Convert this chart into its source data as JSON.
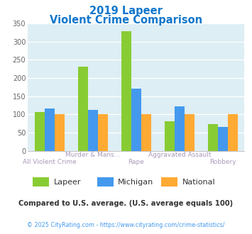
{
  "title_line1": "2019 Lapeer",
  "title_line2": "Violent Crime Comparison",
  "categories": [
    "All Violent Crime",
    "Murder & Mans...",
    "Rape",
    "Aggravated Assault",
    "Robbery"
  ],
  "cat_labels_top": [
    "",
    "Murder & Mans...",
    "",
    "Aggravated Assault",
    ""
  ],
  "cat_labels_bot": [
    "All Violent Crime",
    "",
    "Rape",
    "",
    "Robbery"
  ],
  "series": {
    "Lapeer": [
      107,
      232,
      328,
      81,
      74
    ],
    "Michigan": [
      117,
      112,
      170,
      122,
      65
    ],
    "National": [
      100,
      100,
      100,
      100,
      100
    ]
  },
  "colors": {
    "Lapeer": "#88cc33",
    "Michigan": "#4499ee",
    "National": "#ffaa33"
  },
  "ylim": [
    0,
    350
  ],
  "yticks": [
    0,
    50,
    100,
    150,
    200,
    250,
    300,
    350
  ],
  "plot_bg": "#ddeef4",
  "title_color": "#1177cc",
  "xlabel_color": "#aa99bb",
  "footer_note": "Compared to U.S. average. (U.S. average equals 100)",
  "footer_credit": "© 2025 CityRating.com - https://www.cityrating.com/crime-statistics/",
  "footer_note_color": "#333333",
  "footer_credit_color": "#4499ee"
}
